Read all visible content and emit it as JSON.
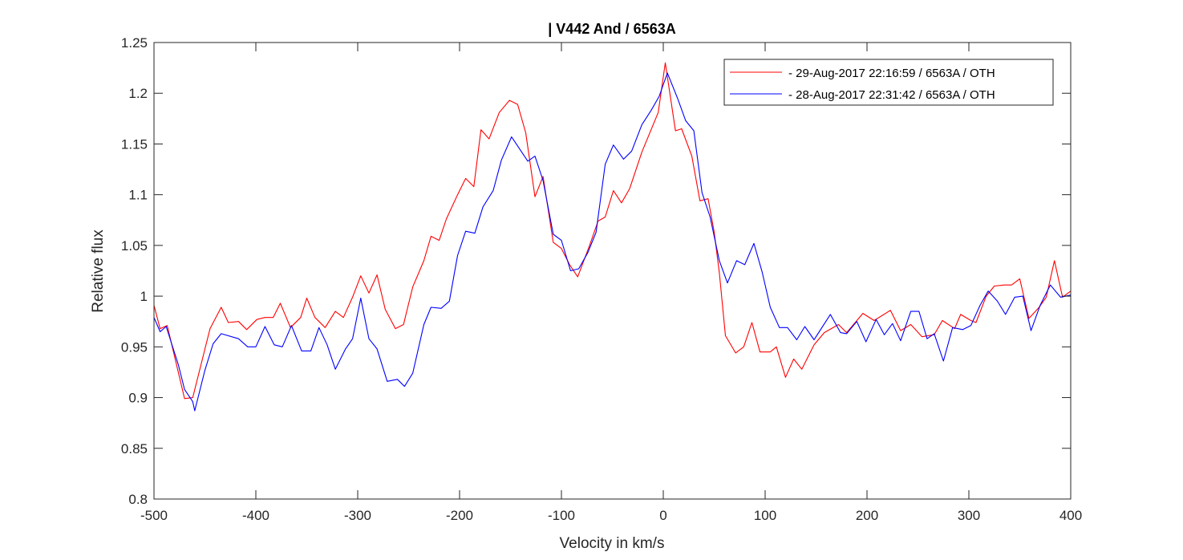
{
  "chart_data": {
    "type": "line",
    "title": "| V442 And / 6563A",
    "xlabel": "Velocity in km/s",
    "ylabel": "Relative flux",
    "xlim": [
      -500,
      400
    ],
    "ylim": [
      0.8,
      1.25
    ],
    "xticks": [
      -500,
      -400,
      -300,
      -200,
      -100,
      0,
      100,
      200,
      300,
      400
    ],
    "xtick_labels": [
      "-500",
      "-400",
      "-300",
      "-200",
      "-100",
      "0",
      "100",
      "200",
      "300",
      "400"
    ],
    "yticks": [
      0.8,
      0.85,
      0.9,
      0.95,
      1,
      1.05,
      1.1,
      1.15,
      1.2,
      1.25
    ],
    "ytick_labels": [
      "0.8",
      "0.85",
      "0.9",
      "0.95",
      "1",
      "1.05",
      "1.1",
      "1.15",
      "1.2",
      "1.25"
    ],
    "grid": false,
    "legend_position": "top-right",
    "series": [
      {
        "name": "- 29-Aug-2017 22:16:59 / 6563A / OTH",
        "color": "#ff0000",
        "points": [
          [
            -500,
            0.991
          ],
          [
            -494,
            0.968
          ],
          [
            -487,
            0.971
          ],
          [
            -470,
            0.899
          ],
          [
            -462,
            0.9
          ],
          [
            -445,
            0.968
          ],
          [
            -434,
            0.989
          ],
          [
            -427,
            0.974
          ],
          [
            -417,
            0.975
          ],
          [
            -409,
            0.967
          ],
          [
            -399,
            0.977
          ],
          [
            -391,
            0.979
          ],
          [
            -383,
            0.979
          ],
          [
            -376,
            0.993
          ],
          [
            -366,
            0.969
          ],
          [
            -356,
            0.979
          ],
          [
            -350,
            0.998
          ],
          [
            -342,
            0.979
          ],
          [
            -332,
            0.969
          ],
          [
            -322,
            0.985
          ],
          [
            -314,
            0.979
          ],
          [
            -305,
            0.999
          ],
          [
            -297,
            1.02
          ],
          [
            -289,
            1.003
          ],
          [
            -281,
            1.021
          ],
          [
            -273,
            0.987
          ],
          [
            -263,
            0.968
          ],
          [
            -255,
            0.972
          ],
          [
            -246,
            1.009
          ],
          [
            -235,
            1.035
          ],
          [
            -228,
            1.059
          ],
          [
            -220,
            1.055
          ],
          [
            -213,
            1.076
          ],
          [
            -202,
            1.1
          ],
          [
            -194,
            1.116
          ],
          [
            -186,
            1.108
          ],
          [
            -179,
            1.164
          ],
          [
            -171,
            1.155
          ],
          [
            -161,
            1.181
          ],
          [
            -151,
            1.193
          ],
          [
            -143,
            1.189
          ],
          [
            -135,
            1.161
          ],
          [
            -126,
            1.098
          ],
          [
            -118,
            1.118
          ],
          [
            -108,
            1.053
          ],
          [
            -100,
            1.047
          ],
          [
            -92,
            1.031
          ],
          [
            -84,
            1.019
          ],
          [
            -72,
            1.051
          ],
          [
            -64,
            1.074
          ],
          [
            -57,
            1.078
          ],
          [
            -49,
            1.104
          ],
          [
            -41,
            1.092
          ],
          [
            -33,
            1.106
          ],
          [
            -21,
            1.142
          ],
          [
            -5,
            1.181
          ],
          [
            2,
            1.23
          ],
          [
            12,
            1.163
          ],
          [
            18,
            1.165
          ],
          [
            28,
            1.138
          ],
          [
            36,
            1.094
          ],
          [
            44,
            1.096
          ],
          [
            50,
            1.063
          ],
          [
            55,
            1.023
          ],
          [
            61,
            0.961
          ],
          [
            71,
            0.944
          ],
          [
            79,
            0.95
          ],
          [
            87,
            0.974
          ],
          [
            95,
            0.945
          ],
          [
            105,
            0.945
          ],
          [
            111,
            0.95
          ],
          [
            120,
            0.92
          ],
          [
            128,
            0.938
          ],
          [
            136,
            0.928
          ],
          [
            148,
            0.952
          ],
          [
            158,
            0.964
          ],
          [
            172,
            0.972
          ],
          [
            180,
            0.964
          ],
          [
            196,
            0.983
          ],
          [
            207,
            0.976
          ],
          [
            223,
            0.986
          ],
          [
            233,
            0.966
          ],
          [
            243,
            0.972
          ],
          [
            254,
            0.96
          ],
          [
            266,
            0.962
          ],
          [
            274,
            0.976
          ],
          [
            286,
            0.968
          ],
          [
            292,
            0.982
          ],
          [
            302,
            0.976
          ],
          [
            307,
            0.974
          ],
          [
            317,
            1.0
          ],
          [
            325,
            1.01
          ],
          [
            335,
            1.011
          ],
          [
            342,
            1.011
          ],
          [
            350,
            1.017
          ],
          [
            359,
            0.978
          ],
          [
            369,
            0.989
          ],
          [
            376,
            0.999
          ],
          [
            384,
            1.035
          ],
          [
            392,
            0.999
          ],
          [
            400,
            1.005
          ]
        ]
      },
      {
        "name": "- 28-Aug-2017 22:31:42 / 6563A / OTH",
        "color": "#0000ff",
        "points": [
          [
            -500,
            0.979
          ],
          [
            -494,
            0.965
          ],
          [
            -488,
            0.97
          ],
          [
            -476,
            0.932
          ],
          [
            -470,
            0.908
          ],
          [
            -462,
            0.896
          ],
          [
            -460,
            0.887
          ],
          [
            -450,
            0.927
          ],
          [
            -442,
            0.953
          ],
          [
            -434,
            0.963
          ],
          [
            -417,
            0.958
          ],
          [
            -408,
            0.95
          ],
          [
            -400,
            0.95
          ],
          [
            -391,
            0.97
          ],
          [
            -382,
            0.952
          ],
          [
            -374,
            0.95
          ],
          [
            -365,
            0.971
          ],
          [
            -355,
            0.946
          ],
          [
            -346,
            0.946
          ],
          [
            -338,
            0.969
          ],
          [
            -330,
            0.952
          ],
          [
            -322,
            0.928
          ],
          [
            -312,
            0.948
          ],
          [
            -305,
            0.958
          ],
          [
            -297,
            0.998
          ],
          [
            -289,
            0.958
          ],
          [
            -281,
            0.948
          ],
          [
            -271,
            0.916
          ],
          [
            -261,
            0.918
          ],
          [
            -254,
            0.911
          ],
          [
            -246,
            0.924
          ],
          [
            -235,
            0.972
          ],
          [
            -228,
            0.989
          ],
          [
            -218,
            0.988
          ],
          [
            -210,
            0.995
          ],
          [
            -202,
            1.04
          ],
          [
            -194,
            1.064
          ],
          [
            -185,
            1.062
          ],
          [
            -177,
            1.088
          ],
          [
            -167,
            1.104
          ],
          [
            -159,
            1.134
          ],
          [
            -149,
            1.157
          ],
          [
            -139,
            1.142
          ],
          [
            -133,
            1.133
          ],
          [
            -126,
            1.138
          ],
          [
            -118,
            1.114
          ],
          [
            -108,
            1.061
          ],
          [
            -100,
            1.055
          ],
          [
            -91,
            1.025
          ],
          [
            -83,
            1.027
          ],
          [
            -74,
            1.043
          ],
          [
            -66,
            1.063
          ],
          [
            -57,
            1.13
          ],
          [
            -49,
            1.149
          ],
          [
            -39,
            1.135
          ],
          [
            -31,
            1.143
          ],
          [
            -21,
            1.169
          ],
          [
            -12,
            1.183
          ],
          [
            -4,
            1.197
          ],
          [
            4,
            1.22
          ],
          [
            14,
            1.195
          ],
          [
            22,
            1.173
          ],
          [
            30,
            1.163
          ],
          [
            38,
            1.102
          ],
          [
            46,
            1.078
          ],
          [
            55,
            1.035
          ],
          [
            63,
            1.013
          ],
          [
            72,
            1.035
          ],
          [
            80,
            1.031
          ],
          [
            89,
            1.052
          ],
          [
            97,
            1.024
          ],
          [
            105,
            0.989
          ],
          [
            114,
            0.969
          ],
          [
            122,
            0.969
          ],
          [
            131,
            0.957
          ],
          [
            139,
            0.97
          ],
          [
            148,
            0.957
          ],
          [
            164,
            0.982
          ],
          [
            174,
            0.964
          ],
          [
            180,
            0.963
          ],
          [
            190,
            0.975
          ],
          [
            199,
            0.955
          ],
          [
            209,
            0.977
          ],
          [
            217,
            0.962
          ],
          [
            225,
            0.973
          ],
          [
            233,
            0.956
          ],
          [
            243,
            0.985
          ],
          [
            251,
            0.985
          ],
          [
            259,
            0.958
          ],
          [
            266,
            0.963
          ],
          [
            275,
            0.936
          ],
          [
            284,
            0.969
          ],
          [
            294,
            0.967
          ],
          [
            302,
            0.971
          ],
          [
            311,
            0.991
          ],
          [
            319,
            1.005
          ],
          [
            328,
            0.995
          ],
          [
            336,
            0.982
          ],
          [
            345,
            0.999
          ],
          [
            353,
            1.0
          ],
          [
            361,
            0.966
          ],
          [
            370,
            0.991
          ],
          [
            380,
            1.011
          ],
          [
            390,
            0.999
          ],
          [
            400,
            1.001
          ]
        ]
      }
    ]
  }
}
